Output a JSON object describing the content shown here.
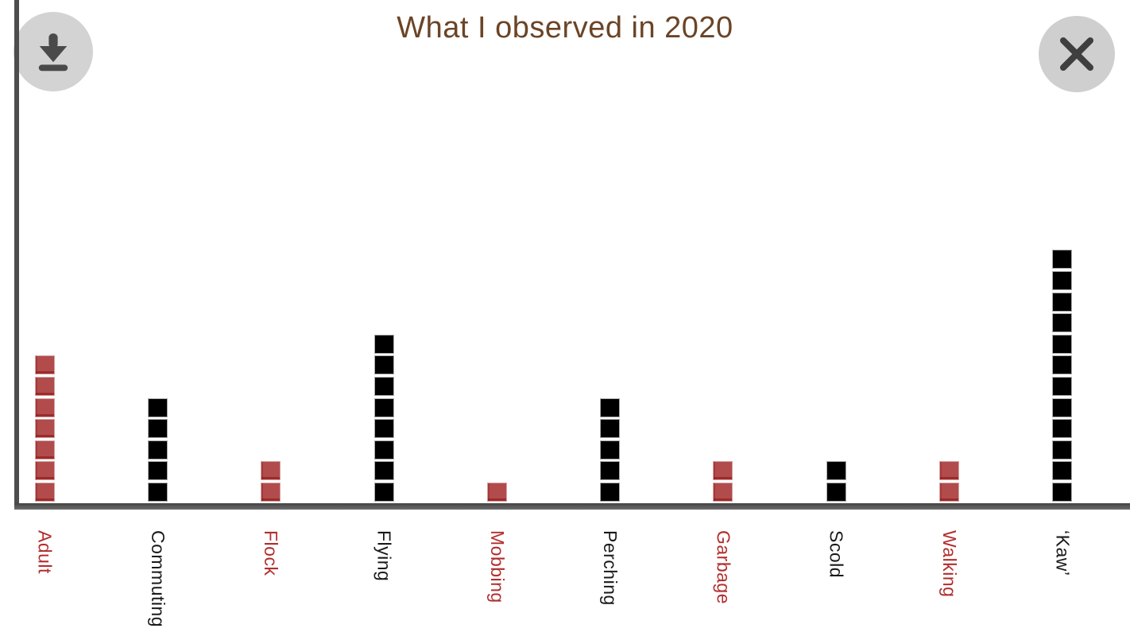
{
  "title": "What I observed in 2020",
  "icons": {
    "download": "download-icon",
    "close": "close-icon"
  },
  "colors": {
    "title": "#6b4426",
    "axis": "#4d4d4d",
    "red_square": "#b24c4c",
    "black_square": "#000000",
    "red_label": "#b22e2e",
    "black_label": "#1a1a1a",
    "button_bg": "#d3d3d3",
    "button_glyph": "#4a4a4a"
  },
  "chart_data": {
    "type": "bar",
    "variant": "unit-square-pictograph",
    "title": "What I observed in 2020",
    "categories": [
      "Adult",
      "Commuting",
      "Flock",
      "Flying",
      "Mobbing",
      "Perching",
      "Garbage",
      "Scold",
      "Walking",
      "‘Kaw’"
    ],
    "values": [
      7,
      5,
      2,
      8,
      1,
      5,
      2,
      2,
      2,
      12
    ],
    "bar_colors": [
      "red",
      "black",
      "red",
      "black",
      "red",
      "black",
      "red",
      "black",
      "red",
      "black"
    ],
    "xlabel": "",
    "ylabel": "",
    "ylim": [
      0,
      12
    ],
    "grid": false,
    "legend": false,
    "x_label_rotation_deg": 90
  }
}
